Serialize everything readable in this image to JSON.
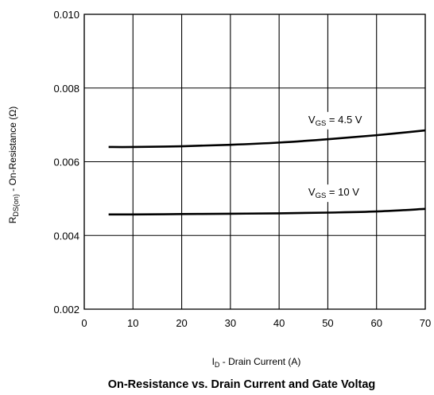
{
  "chart_data": {
    "type": "line",
    "title": "On-Resistance vs. Drain Current and Gate Voltag",
    "xlabel": {
      "main": "I",
      "sub": "D",
      "rest": " - Drain Current (A)"
    },
    "ylabel": {
      "main": "R",
      "sub": "DS(on)",
      "rest": " - On-Resistance (Ω)"
    },
    "xlim": [
      0,
      70
    ],
    "ylim": [
      0.002,
      0.01
    ],
    "xticks": [
      "0",
      "10",
      "20",
      "30",
      "40",
      "50",
      "60",
      "70"
    ],
    "yticks": [
      "0.002",
      "0.004",
      "0.006",
      "0.008",
      "0.010"
    ],
    "grid": true,
    "series": [
      {
        "label": {
          "main": "V",
          "sub": "GS",
          "rest": " = 4.5 V"
        },
        "label_at": {
          "x": 46,
          "y": 0.00705
        },
        "points": [
          [
            5,
            0.0064
          ],
          [
            10,
            0.0064
          ],
          [
            20,
            0.00642
          ],
          [
            30,
            0.00646
          ],
          [
            40,
            0.00652
          ],
          [
            50,
            0.00661
          ],
          [
            60,
            0.00672
          ],
          [
            70,
            0.00685
          ]
        ]
      },
      {
        "label": {
          "main": "V",
          "sub": "GS",
          "rest": " = 10 V"
        },
        "label_at": {
          "x": 46,
          "y": 0.00508
        },
        "points": [
          [
            5,
            0.00457
          ],
          [
            10,
            0.00457
          ],
          [
            20,
            0.00458
          ],
          [
            30,
            0.00459
          ],
          [
            40,
            0.0046
          ],
          [
            50,
            0.00462
          ],
          [
            60,
            0.00465
          ],
          [
            70,
            0.00472
          ]
        ]
      }
    ]
  }
}
